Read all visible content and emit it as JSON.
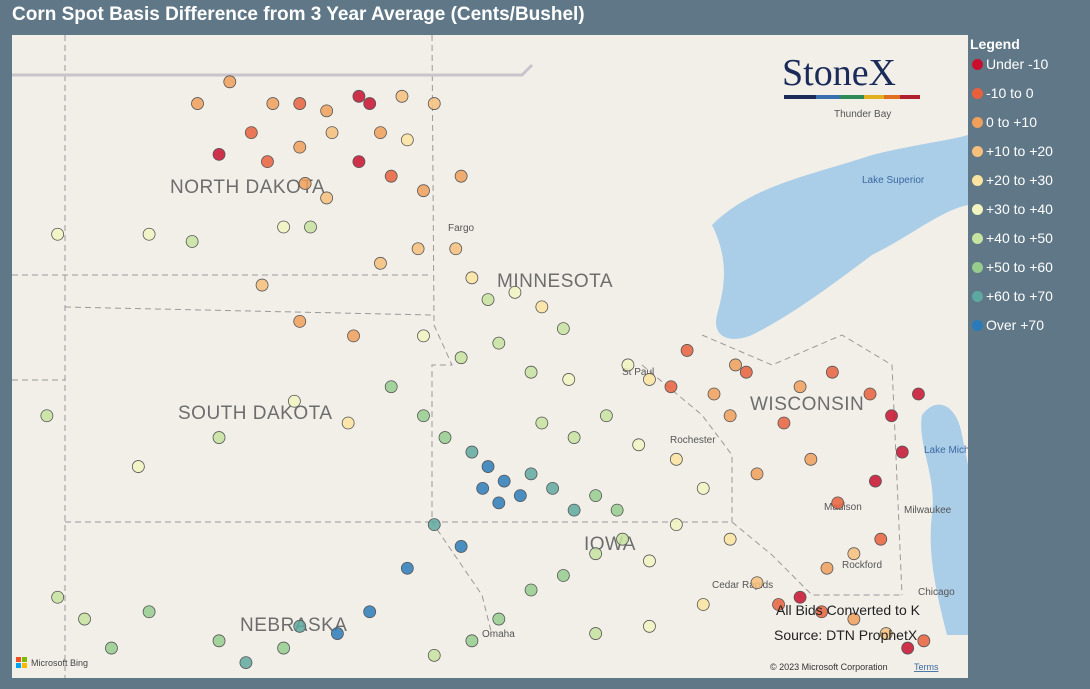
{
  "title": "Corn Spot Basis Difference from 3 Year Average (Cents/Bushel)",
  "legend": {
    "title": "Legend",
    "items": [
      {
        "label": "Under -10",
        "color": "#c8102e"
      },
      {
        "label": "-10 to 0",
        "color": "#e8603c"
      },
      {
        "label": "0 to +10",
        "color": "#f0a05a"
      },
      {
        "label": "+10 to +20",
        "color": "#f6c07c"
      },
      {
        "label": "+20 to +30",
        "color": "#fbe3a0"
      },
      {
        "label": "+30 to +40",
        "color": "#f1f4c0"
      },
      {
        "label": "+40 to +50",
        "color": "#c7e3a0"
      },
      {
        "label": "+50 to +60",
        "color": "#96cc8e"
      },
      {
        "label": "+60 to +70",
        "color": "#5fa8a0"
      },
      {
        "label": "Over +70",
        "color": "#2b7bba"
      }
    ]
  },
  "logo": "StoneX",
  "map": {
    "labels": [
      "NORTH DAKOTA",
      "MINNESOTA",
      "SOUTH DAKOTA",
      "WISCONSIN",
      "NEBRASKA",
      "IOWA",
      "Fargo",
      "Thunder Bay",
      "Lake Superior",
      "St Paul",
      "Rochester",
      "Lake Michigan",
      "Milwaukee",
      "Madison",
      "Rockford",
      "Cedar Rapids",
      "Chicago",
      "Omaha"
    ],
    "points": [
      [
        -101.4,
        48.6,
        2
      ],
      [
        -100.8,
        48.9,
        2
      ],
      [
        -100.0,
        48.6,
        2
      ],
      [
        -99.5,
        48.6,
        1
      ],
      [
        -99.0,
        48.5,
        2
      ],
      [
        -98.4,
        48.7,
        0
      ],
      [
        -98.2,
        48.6,
        0
      ],
      [
        -97.6,
        48.7,
        3
      ],
      [
        -97.0,
        48.6,
        3
      ],
      [
        -100.4,
        48.2,
        1
      ],
      [
        -101.0,
        47.9,
        0
      ],
      [
        -100.1,
        47.8,
        1
      ],
      [
        -99.5,
        48.0,
        2
      ],
      [
        -98.9,
        48.2,
        3
      ],
      [
        -98.0,
        48.2,
        2
      ],
      [
        -97.5,
        48.1,
        4
      ],
      [
        -98.4,
        47.8,
        0
      ],
      [
        -97.8,
        47.6,
        1
      ],
      [
        -97.2,
        47.4,
        2
      ],
      [
        -96.5,
        47.6,
        2
      ],
      [
        -99.4,
        47.5,
        2
      ],
      [
        -99.0,
        47.3,
        3
      ],
      [
        -104.0,
        46.8,
        5
      ],
      [
        -102.3,
        46.8,
        5
      ],
      [
        -101.5,
        46.7,
        6
      ],
      [
        -99.8,
        46.9,
        5
      ],
      [
        -99.3,
        46.9,
        6
      ],
      [
        -98.0,
        46.4,
        3
      ],
      [
        -97.3,
        46.6,
        3
      ],
      [
        -96.6,
        46.6,
        3
      ],
      [
        -96.3,
        46.2,
        4
      ],
      [
        -96.0,
        45.9,
        6
      ],
      [
        -95.5,
        46.0,
        5
      ],
      [
        -95.0,
        45.8,
        4
      ],
      [
        -94.6,
        45.5,
        6
      ],
      [
        -100.2,
        46.1,
        3
      ],
      [
        -99.5,
        45.6,
        2
      ],
      [
        -98.5,
        45.4,
        2
      ],
      [
        -97.2,
        45.4,
        5
      ],
      [
        -96.5,
        45.1,
        6
      ],
      [
        -95.8,
        45.3,
        6
      ],
      [
        -95.2,
        44.9,
        6
      ],
      [
        -94.5,
        44.8,
        5
      ],
      [
        -93.4,
        45.0,
        5
      ],
      [
        -93.0,
        44.8,
        4
      ],
      [
        -104.2,
        44.3,
        6
      ],
      [
        -102.5,
        43.6,
        5
      ],
      [
        -101.0,
        44.0,
        6
      ],
      [
        -99.6,
        44.5,
        5
      ],
      [
        -98.6,
        44.2,
        4
      ],
      [
        -97.8,
        44.7,
        7
      ],
      [
        -97.2,
        44.3,
        7
      ],
      [
        -96.8,
        44.0,
        7
      ],
      [
        -96.3,
        43.8,
        8
      ],
      [
        -96.0,
        43.6,
        9
      ],
      [
        -95.7,
        43.4,
        9
      ],
      [
        -95.4,
        43.2,
        9
      ],
      [
        -95.8,
        43.1,
        9
      ],
      [
        -96.1,
        43.3,
        9
      ],
      [
        -95.2,
        43.5,
        8
      ],
      [
        -94.8,
        43.3,
        8
      ],
      [
        -94.4,
        43.0,
        8
      ],
      [
        -94.0,
        43.2,
        7
      ],
      [
        -93.6,
        43.0,
        7
      ],
      [
        -96.5,
        42.5,
        9
      ],
      [
        -97.0,
        42.8,
        8
      ],
      [
        -97.5,
        42.2,
        9
      ],
      [
        -98.2,
        41.6,
        9
      ],
      [
        -98.8,
        41.3,
        9
      ],
      [
        -99.5,
        41.4,
        8
      ],
      [
        -101.0,
        41.2,
        7
      ],
      [
        -102.3,
        41.6,
        7
      ],
      [
        -103.5,
        41.5,
        6
      ],
      [
        -97.0,
        41.0,
        6
      ],
      [
        -96.3,
        41.2,
        7
      ],
      [
        -95.8,
        41.5,
        7
      ],
      [
        -95.2,
        41.9,
        7
      ],
      [
        -94.6,
        42.1,
        7
      ],
      [
        -94.0,
        42.4,
        6
      ],
      [
        -93.5,
        42.6,
        6
      ],
      [
        -93.0,
        42.3,
        5
      ],
      [
        -92.5,
        42.8,
        5
      ],
      [
        -92.0,
        43.3,
        5
      ],
      [
        -92.5,
        43.7,
        4
      ],
      [
        -93.2,
        43.9,
        5
      ],
      [
        -93.8,
        44.3,
        6
      ],
      [
        -94.4,
        44.0,
        6
      ],
      [
        -95.0,
        44.2,
        6
      ],
      [
        -91.5,
        42.6,
        4
      ],
      [
        -91.0,
        42.0,
        3
      ],
      [
        -92.0,
        41.7,
        4
      ],
      [
        -93.0,
        41.4,
        5
      ],
      [
        -94.0,
        41.3,
        6
      ],
      [
        -90.6,
        41.7,
        1
      ],
      [
        -90.2,
        41.8,
        0
      ],
      [
        -89.8,
        41.6,
        1
      ],
      [
        -89.2,
        41.5,
        2
      ],
      [
        -88.6,
        41.3,
        3
      ],
      [
        -88.2,
        41.1,
        0
      ],
      [
        -87.9,
        41.2,
        1
      ],
      [
        -89.7,
        42.2,
        2
      ],
      [
        -89.2,
        42.4,
        3
      ],
      [
        -88.7,
        42.6,
        1
      ],
      [
        -89.5,
        43.1,
        1
      ],
      [
        -88.8,
        43.4,
        0
      ],
      [
        -88.3,
        43.8,
        0
      ],
      [
        -88.5,
        44.3,
        0
      ],
      [
        -88.0,
        44.6,
        0
      ],
      [
        -88.9,
        44.6,
        1
      ],
      [
        -89.6,
        44.9,
        1
      ],
      [
        -90.2,
        44.7,
        2
      ],
      [
        -91.2,
        44.9,
        1
      ],
      [
        -91.8,
        44.6,
        2
      ],
      [
        -92.6,
        44.7,
        1
      ],
      [
        -91.5,
        44.3,
        2
      ],
      [
        -90.5,
        44.2,
        1
      ],
      [
        -90.0,
        43.7,
        2
      ],
      [
        -91.0,
        43.5,
        2
      ],
      [
        -92.3,
        45.2,
        1
      ],
      [
        -91.4,
        45.0,
        2
      ],
      [
        -104.0,
        41.8,
        6
      ],
      [
        -103.0,
        41.1,
        7
      ],
      [
        -100.5,
        40.9,
        8
      ],
      [
        -99.8,
        41.1,
        7
      ]
    ]
  },
  "notes": [
    "All Bids Converted to K",
    "Source: DTN ProphetX"
  ],
  "attribution": {
    "copyright": "© 2023 Microsoft Corporation",
    "terms": "Terms",
    "provider": "Microsoft Bing"
  }
}
